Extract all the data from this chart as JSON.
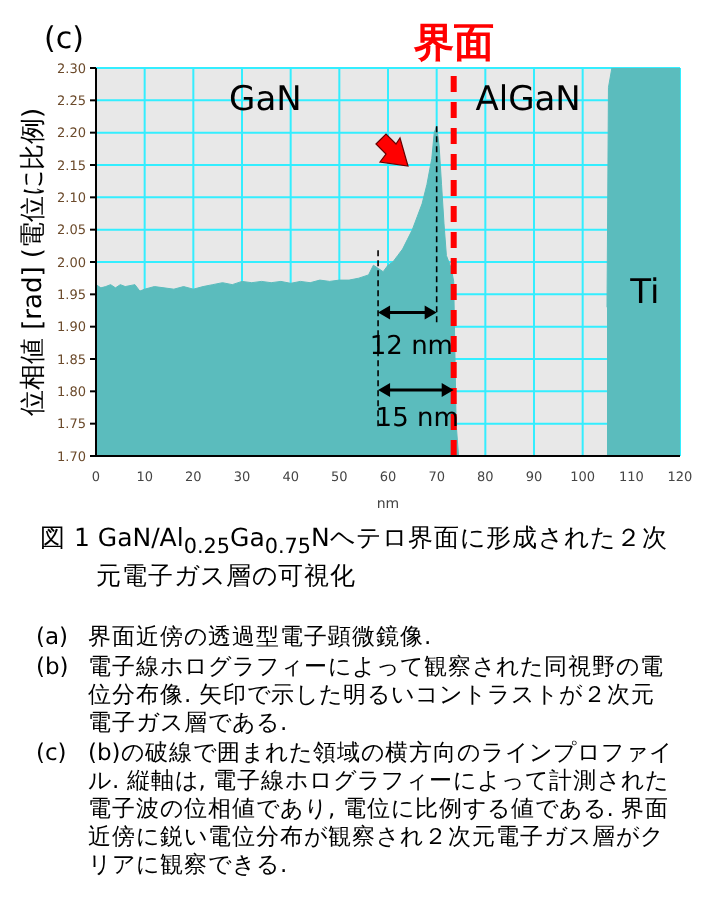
{
  "chart_data": {
    "type": "area",
    "title": "(c)",
    "xlabel": "nm",
    "ylabel": "位相値 [rad] (電位に比例)",
    "x": [
      0,
      1,
      2,
      3,
      4,
      5,
      6,
      8,
      9,
      10,
      12,
      14,
      16,
      18,
      20,
      22,
      24,
      26,
      28,
      30,
      32,
      34,
      36,
      38,
      40,
      42,
      44,
      46,
      48,
      50,
      52,
      54,
      56,
      57,
      58,
      59,
      60,
      61,
      62,
      63,
      64,
      65,
      66,
      67,
      68,
      69,
      69.5,
      70,
      70.5,
      71,
      71.5,
      72,
      73,
      73.5,
      74,
      74.5,
      80,
      105,
      105.3,
      106,
      120
    ],
    "series": [
      {
        "color": "#5bbcbd",
        "values": [
          1.965,
          1.96,
          1.962,
          1.965,
          1.96,
          1.965,
          1.962,
          1.965,
          1.955,
          1.958,
          1.962,
          1.96,
          1.958,
          1.962,
          1.958,
          1.962,
          1.965,
          1.968,
          1.965,
          1.97,
          1.968,
          1.97,
          1.968,
          1.97,
          1.967,
          1.97,
          1.968,
          1.972,
          1.97,
          1.972,
          1.972,
          1.975,
          1.98,
          1.995,
          1.99,
          1.985,
          1.995,
          2.0,
          2.01,
          2.02,
          2.035,
          2.05,
          2.07,
          2.09,
          2.12,
          2.16,
          2.2,
          2.21,
          2.18,
          2.12,
          2.06,
          2.01,
          1.99,
          1.97,
          1.75,
          1.7,
          null,
          1.93,
          2.27,
          2.3,
          2.3
        ]
      }
    ],
    "xlim": [
      0,
      120
    ],
    "xticks": [
      0,
      10,
      20,
      30,
      40,
      50,
      60,
      70,
      80,
      90,
      100,
      110,
      120
    ],
    "ylim": [
      1.7,
      2.3
    ],
    "yticks": [
      {
        "value": 1.7,
        "label": "1.70"
      },
      {
        "value": 1.75,
        "label": "1.75"
      },
      {
        "value": 1.8,
        "label": "1.80"
      },
      {
        "value": 1.85,
        "label": "1.85"
      },
      {
        "value": 1.9,
        "label": "1.90"
      },
      {
        "value": 1.95,
        "label": "1.95"
      },
      {
        "value": 2.0,
        "label": "2.00"
      },
      {
        "value": 2.05,
        "label": "2.05"
      },
      {
        "value": 2.1,
        "label": "2.10"
      },
      {
        "value": 2.15,
        "label": "2.15"
      },
      {
        "value": 2.2,
        "label": "2.20"
      },
      {
        "value": 2.25,
        "label": "2.25"
      },
      {
        "value": 2.3,
        "label": "2.30"
      }
    ],
    "grid": true,
    "ref_lines": [
      {
        "axis": "x",
        "value": 73.5,
        "label": "界面",
        "color": "#ff0000",
        "line_style": "dashed"
      }
    ],
    "annotations": [
      "GaN",
      "AlGaN",
      "Ti",
      {
        "text": "12 nm",
        "x": 70,
        "y": 2.21
      },
      "15 nm",
      "図 1 GaN/Al$_{0.25}$Ga$_{0.75}$Nヘテロ界面に形成された２次元電子ガス層の可視化",
      "(a) 界面近傍の透過型電子顕微鏡像.",
      "(b) 電子線ホログラフィーによって観察された同視野の電位分布像. 矢印で示した明るいコントラストが２次元電子ガス層である.",
      "(c) (b)の破線で囲まれた領域の横方向のラインプロファイル. 縦軸は, 電子線ホログラフィーによって計測された電子波の位相値であり, 電位に比例する値である. 界面近傍に鋭い電位分布が観察され２次元電子ガス層がクリアに観察できる."
    ]
  }
}
